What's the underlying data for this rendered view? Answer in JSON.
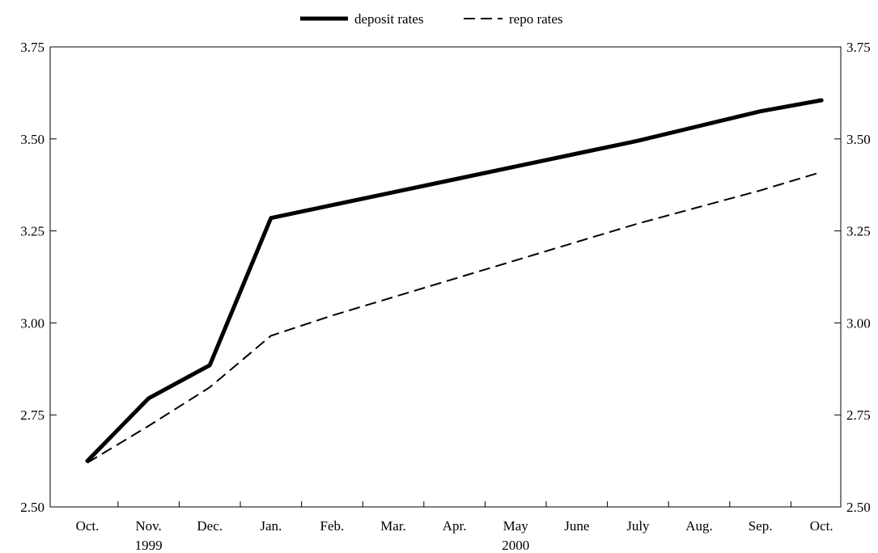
{
  "chart_data": {
    "type": "line",
    "categories": [
      "Oct.",
      "Nov.",
      "Dec.",
      "Jan.",
      "Feb.",
      "Mar.",
      "Apr.",
      "May",
      "June",
      "July",
      "Aug.",
      "Sep.",
      "Oct."
    ],
    "year_labels": [
      {
        "label": "1999",
        "category_index": 1
      },
      {
        "label": "2000",
        "category_index": 7
      }
    ],
    "series": [
      {
        "name": "deposit rates",
        "style": "solid-thick",
        "color": "#000000",
        "values": [
          2.625,
          2.795,
          2.885,
          3.285,
          3.32,
          3.355,
          3.39,
          3.425,
          3.46,
          3.495,
          3.535,
          3.575,
          3.605
        ]
      },
      {
        "name": "repo rates",
        "style": "dashed",
        "color": "#000000",
        "values": [
          2.62,
          2.72,
          2.825,
          2.965,
          3.02,
          3.07,
          3.12,
          3.17,
          3.22,
          3.27,
          3.315,
          3.36,
          3.41
        ]
      }
    ],
    "y_ticks": [
      "2.50",
      "2.75",
      "3.00",
      "3.25",
      "3.50",
      "3.75"
    ],
    "ylim": [
      2.5,
      3.75
    ],
    "legend_position": "top-center",
    "grid": false,
    "dual_y_axis": true
  }
}
